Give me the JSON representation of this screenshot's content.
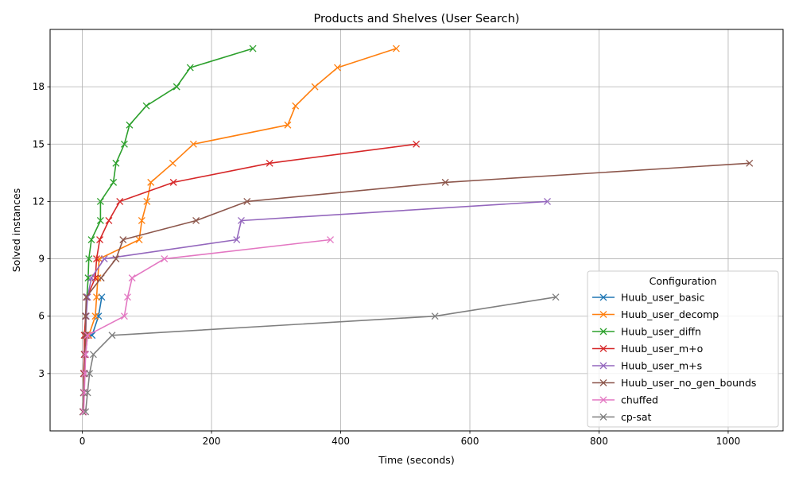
{
  "chart_data": {
    "type": "line",
    "title": "Products and Shelves (User Search)",
    "xlabel": "Time (seconds)",
    "ylabel": "Solved instances",
    "xlim": [
      -50,
      1085
    ],
    "ylim": [
      0.0,
      21.0
    ],
    "xticks": [
      0,
      200,
      400,
      600,
      800,
      1000
    ],
    "yticks": [
      3,
      6,
      9,
      12,
      15,
      18
    ],
    "grid": true,
    "marker": "x",
    "legend": {
      "title": "Configuration",
      "placement": "lower-right"
    },
    "series": [
      {
        "name": "Huub_user_basic",
        "color": "#1f77b4",
        "points": [
          [
            1,
            1
          ],
          [
            2,
            2
          ],
          [
            3,
            3
          ],
          [
            5,
            4
          ],
          [
            8,
            5
          ],
          [
            15,
            5
          ],
          [
            25,
            6
          ],
          [
            30,
            7
          ]
        ]
      },
      {
        "name": "Huub_user_decomp",
        "color": "#ff7f0e",
        "points": [
          [
            1,
            1
          ],
          [
            2,
            2
          ],
          [
            3,
            3
          ],
          [
            4,
            4
          ],
          [
            6,
            5
          ],
          [
            10,
            5
          ],
          [
            20,
            6
          ],
          [
            22,
            7
          ],
          [
            24,
            8
          ],
          [
            26,
            9
          ],
          [
            88,
            10
          ],
          [
            92,
            11
          ],
          [
            100,
            12
          ],
          [
            106,
            13
          ],
          [
            140,
            14
          ],
          [
            172,
            15
          ],
          [
            318,
            16
          ],
          [
            330,
            17
          ],
          [
            360,
            18
          ],
          [
            395,
            19
          ],
          [
            486,
            20
          ]
        ]
      },
      {
        "name": "Huub_user_diffn",
        "color": "#2ca02c",
        "points": [
          [
            1,
            1
          ],
          [
            2,
            2
          ],
          [
            2,
            3
          ],
          [
            3,
            4
          ],
          [
            4,
            5
          ],
          [
            5,
            6
          ],
          [
            7,
            7
          ],
          [
            9,
            8
          ],
          [
            10,
            9
          ],
          [
            14,
            10
          ],
          [
            28,
            11
          ],
          [
            28,
            12
          ],
          [
            48,
            13
          ],
          [
            52,
            14
          ],
          [
            65,
            15
          ],
          [
            73,
            16
          ],
          [
            99,
            17
          ],
          [
            146,
            18
          ],
          [
            167,
            19
          ],
          [
            264,
            20
          ]
        ]
      },
      {
        "name": "Huub_user_m+o",
        "color": "#d62728",
        "points": [
          [
            1,
            1
          ],
          [
            2,
            2
          ],
          [
            2,
            3
          ],
          [
            3,
            4
          ],
          [
            3,
            5
          ],
          [
            5,
            6
          ],
          [
            7,
            7
          ],
          [
            20,
            8
          ],
          [
            22,
            9
          ],
          [
            27,
            10
          ],
          [
            41,
            11
          ],
          [
            58,
            12
          ],
          [
            141,
            13
          ],
          [
            290,
            14
          ],
          [
            517,
            15
          ]
        ]
      },
      {
        "name": "Huub_user_m+s",
        "color": "#9467bd",
        "points": [
          [
            1,
            1
          ],
          [
            2,
            2
          ],
          [
            3,
            3
          ],
          [
            4,
            4
          ],
          [
            5,
            5
          ],
          [
            6,
            6
          ],
          [
            8,
            7
          ],
          [
            14,
            8
          ],
          [
            34,
            9
          ],
          [
            239,
            10
          ],
          [
            246,
            11
          ],
          [
            720,
            12
          ]
        ]
      },
      {
        "name": "Huub_user_no_gen_bounds",
        "color": "#8c564b",
        "points": [
          [
            1,
            1
          ],
          [
            2,
            2
          ],
          [
            3,
            3
          ],
          [
            4,
            4
          ],
          [
            5,
            5
          ],
          [
            5,
            6
          ],
          [
            6,
            7
          ],
          [
            29,
            8
          ],
          [
            52,
            9
          ],
          [
            63,
            10
          ],
          [
            176,
            11
          ],
          [
            255,
            12
          ],
          [
            562,
            13
          ],
          [
            1033,
            14
          ]
        ]
      },
      {
        "name": "chuffed",
        "color": "#e377c2",
        "points": [
          [
            2,
            1
          ],
          [
            3,
            2
          ],
          [
            4,
            3
          ],
          [
            5,
            4
          ],
          [
            8,
            5
          ],
          [
            65,
            6
          ],
          [
            70,
            7
          ],
          [
            77,
            8
          ],
          [
            127,
            9
          ],
          [
            384,
            10
          ]
        ]
      },
      {
        "name": "cp-sat",
        "color": "#7f7f7f",
        "points": [
          [
            5,
            1
          ],
          [
            8,
            2
          ],
          [
            11,
            3
          ],
          [
            17,
            4
          ],
          [
            46,
            5
          ],
          [
            546,
            6
          ],
          [
            733,
            7
          ]
        ]
      }
    ]
  }
}
